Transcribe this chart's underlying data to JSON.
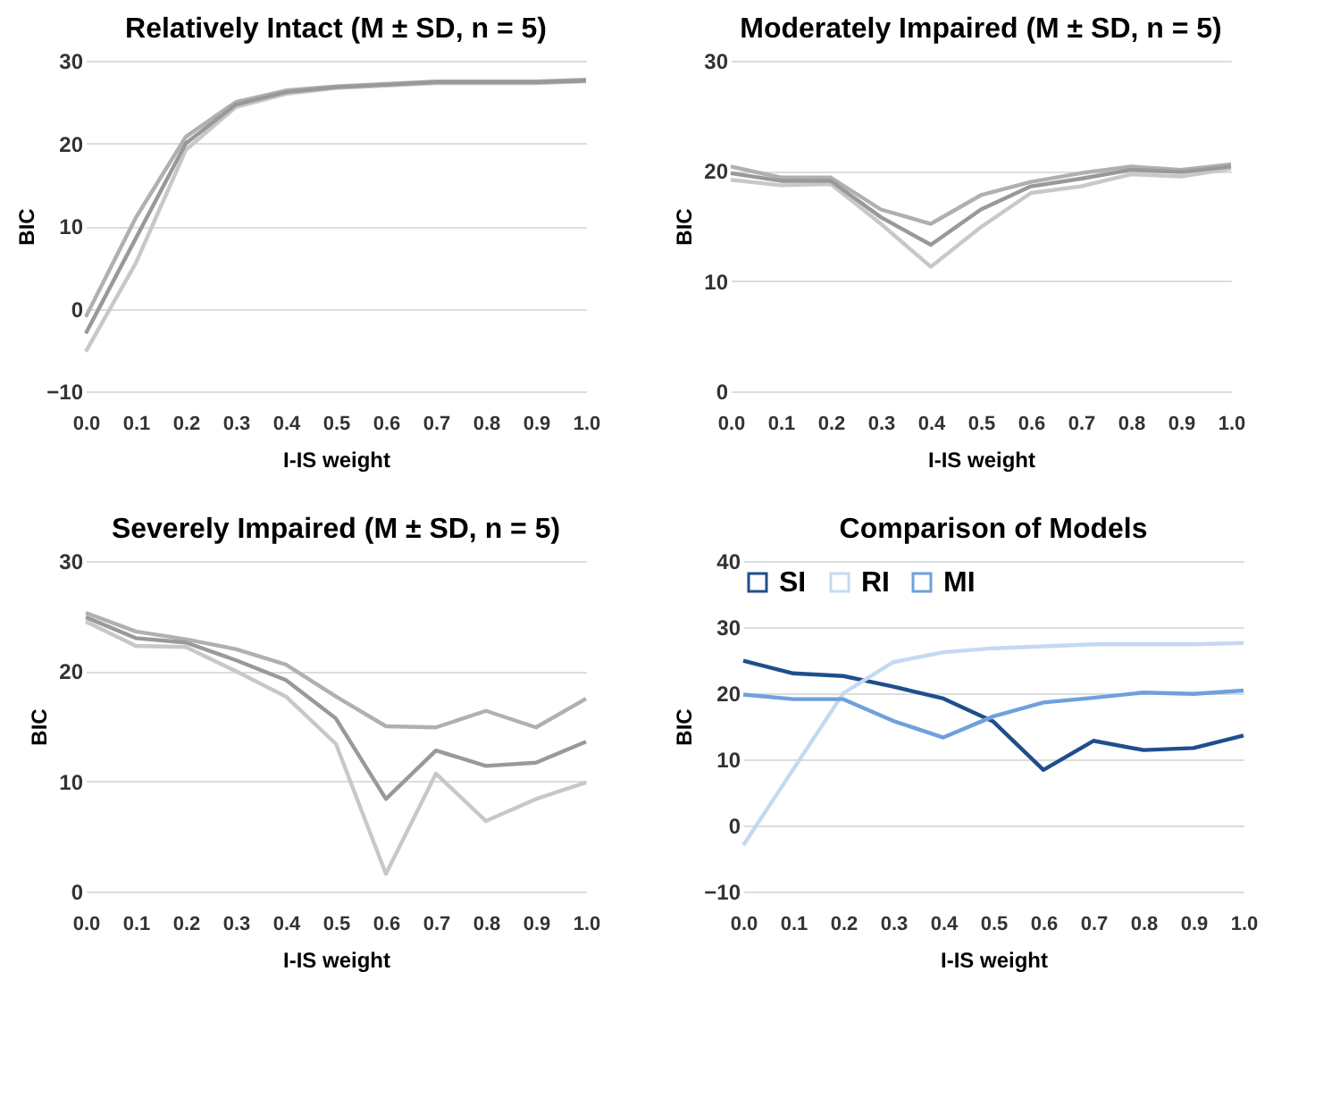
{
  "chart_data": [
    {
      "type": "line",
      "title": "Relatively Intact (M ± SD, n = 5)",
      "xlabel": "I-IS weight",
      "ylabel": "BIC",
      "categories": [
        "0.0",
        "0.1",
        "0.2",
        "0.3",
        "0.4",
        "0.5",
        "0.6",
        "0.7",
        "0.8",
        "0.9",
        "1.0"
      ],
      "ylim": [
        -10,
        30
      ],
      "yticks": [
        -10,
        0,
        10,
        20,
        30
      ],
      "grid": "y",
      "legend": false,
      "series": [
        {
          "color": "#c8c8c8",
          "values": [
            -5.2,
            5.5,
            19.2,
            24.4,
            26.0,
            26.7,
            27.0,
            27.3,
            27.3,
            27.3,
            27.5
          ]
        },
        {
          "color": "#b0b0b0",
          "values": [
            -1,
            11,
            20.8,
            25,
            26.4,
            26.9,
            27.2,
            27.5,
            27.5,
            27.5,
            27.7
          ]
        },
        {
          "color": "#999999",
          "values": [
            -3,
            8.5,
            20,
            24.7,
            26.2,
            26.8,
            27.1,
            27.4,
            27.4,
            27.4,
            27.6
          ]
        }
      ]
    },
    {
      "type": "line",
      "title": "Moderately Impaired (M ± SD, n = 5)",
      "xlabel": "I-IS weight",
      "ylabel": "BIC",
      "categories": [
        "0.0",
        "0.1",
        "0.2",
        "0.3",
        "0.4",
        "0.5",
        "0.6",
        "0.7",
        "0.8",
        "0.9",
        "1.0"
      ],
      "ylim": [
        0,
        30
      ],
      "yticks": [
        0,
        10,
        20,
        30
      ],
      "grid": "y",
      "legend": false,
      "series": [
        {
          "color": "#c8c8c8",
          "values": [
            19.2,
            18.7,
            18.8,
            15.2,
            11.3,
            14.9,
            18.0,
            18.6,
            19.7,
            19.5,
            20.2
          ]
        },
        {
          "color": "#b0b0b0",
          "values": [
            20.4,
            19.4,
            19.4,
            16.5,
            15.2,
            17.8,
            19.0,
            19.8,
            20.4,
            20.1,
            20.6
          ]
        },
        {
          "color": "#999999",
          "values": [
            19.8,
            19.1,
            19.1,
            15.8,
            13.3,
            16.5,
            18.6,
            19.3,
            20.1,
            19.9,
            20.4
          ]
        }
      ]
    },
    {
      "type": "line",
      "title": "Severely Impaired (M ± SD, n = 5)",
      "xlabel": "I-IS weight",
      "ylabel": "BIC",
      "categories": [
        "0.0",
        "0.1",
        "0.2",
        "0.3",
        "0.4",
        "0.5",
        "0.6",
        "0.7",
        "0.8",
        "0.9",
        "1.0"
      ],
      "ylim": [
        0,
        30
      ],
      "yticks": [
        0,
        10,
        20,
        30
      ],
      "grid": "y",
      "legend": false,
      "series": [
        {
          "color": "#c8c8c8",
          "values": [
            24.5,
            22.3,
            22.2,
            20.0,
            17.7,
            13.4,
            1.6,
            10.7,
            6.4,
            8.4,
            9.9
          ]
        },
        {
          "color": "#b0b0b0",
          "values": [
            25.3,
            23.6,
            22.9,
            22.0,
            20.6,
            17.7,
            15.0,
            14.9,
            16.4,
            14.9,
            17.5
          ]
        },
        {
          "color": "#999999",
          "values": [
            24.9,
            23.0,
            22.6,
            21.0,
            19.2,
            15.7,
            8.4,
            12.8,
            11.4,
            11.7,
            13.6
          ]
        }
      ]
    },
    {
      "type": "line",
      "title": "Comparison of Models",
      "xlabel": "I-IS weight",
      "ylabel": "BIC",
      "categories": [
        "0.0",
        "0.1",
        "0.2",
        "0.3",
        "0.4",
        "0.5",
        "0.6",
        "0.7",
        "0.8",
        "0.9",
        "1.0"
      ],
      "ylim": [
        -10,
        40
      ],
      "yticks": [
        -10,
        0,
        10,
        20,
        30,
        40
      ],
      "grid": "y",
      "legend": "top",
      "series": [
        {
          "name": "SI",
          "color": "#1f4e8c",
          "values": [
            24.9,
            23.0,
            22.6,
            21.0,
            19.2,
            15.7,
            8.4,
            12.8,
            11.4,
            11.7,
            13.6
          ]
        },
        {
          "name": "RI",
          "color": "#c5d9f1",
          "values": [
            -3,
            8.5,
            20,
            24.7,
            26.2,
            26.8,
            27.1,
            27.4,
            27.4,
            27.4,
            27.6
          ]
        },
        {
          "name": "MI",
          "color": "#6fa0dc",
          "values": [
            19.8,
            19.1,
            19.1,
            15.8,
            13.3,
            16.5,
            18.6,
            19.3,
            20.1,
            19.9,
            20.4
          ]
        }
      ]
    }
  ]
}
